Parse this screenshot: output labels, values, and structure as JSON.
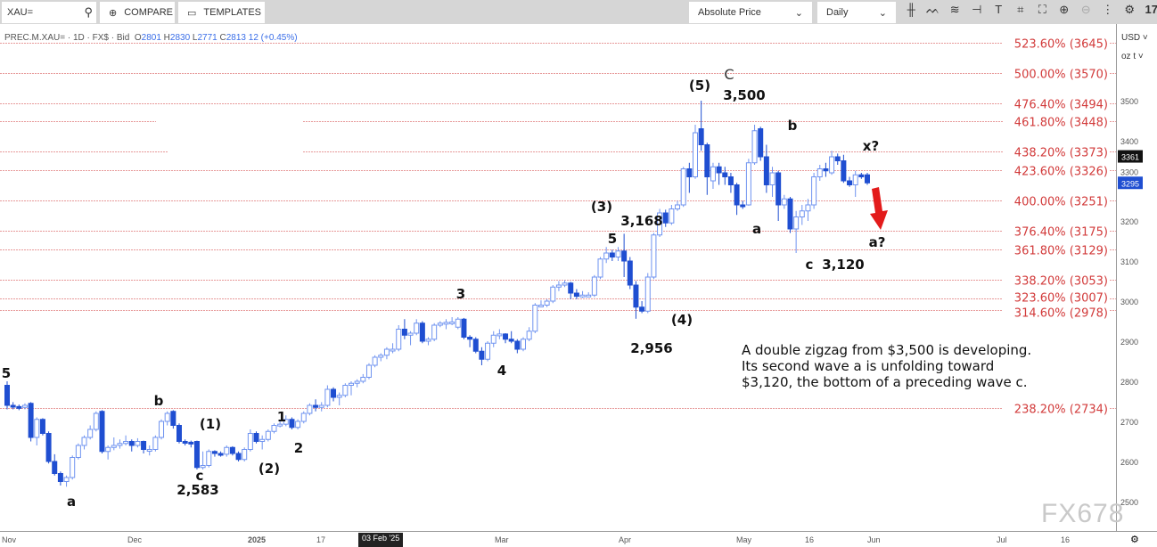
{
  "toolbar": {
    "search_value": "XAU=",
    "compare_label": "COMPARE",
    "templates_label": "TEMPLATES",
    "price_mode": "Absolute Price",
    "interval": "Daily",
    "icons": [
      "candlestick-icon",
      "indicators-icon",
      "studies-icon",
      "drawing-icon",
      "text-icon",
      "shape-icon",
      "pattern-icon",
      "zoom-in-icon",
      "zoom-out-icon",
      "more-icon",
      "settings-icon",
      "tradingview-logo-icon"
    ]
  },
  "legend": {
    "symbol": "PREC.M.XAU= · 1D · FX$ · Bid",
    "o": "2801",
    "h": "2830",
    "l": "2771",
    "c": "2813",
    "change": "12 (+0.45%)"
  },
  "axis_units": {
    "currency": "USD ˅",
    "unit": "oz t ˅"
  },
  "watermark": "FX678",
  "note": [
    "A double zigzag from $3,500 is developing.",
    "Its second wave a is unfolding toward",
    "$3,120, the bottom of a preceding wave c."
  ],
  "chart_data": {
    "type": "candlestick",
    "colors": {
      "up": "#6f93f0",
      "down": "#1f4ed1",
      "fib": "#d23a3a",
      "arrow": "#e31b1b"
    },
    "ylim": [
      2450,
      3680
    ],
    "yticks": [
      2500,
      2600,
      2700,
      2800,
      2900,
      3000,
      3100,
      3200,
      3300,
      3400,
      3500
    ],
    "xticks": [
      "Nov",
      "Dec",
      "2025",
      "17",
      "03 Feb '25",
      "Mar",
      "Apr",
      "May",
      "16",
      "Jun",
      "Jul",
      "16"
    ],
    "last_price_labels": [
      {
        "value": "3361",
        "color": "#111111"
      },
      {
        "value": "3295",
        "color": "#1f4ed1"
      }
    ],
    "fib_levels": [
      {
        "pct": "523.60%",
        "price": 3645
      },
      {
        "pct": "500.00%",
        "price": 3570
      },
      {
        "pct": "476.40%",
        "price": 3494
      },
      {
        "pct": "461.80%",
        "price": 3448
      },
      {
        "pct": "438.20%",
        "price": 3373
      },
      {
        "pct": "423.60%",
        "price": 3326
      },
      {
        "pct": "400.00%",
        "price": 3251
      },
      {
        "pct": "376.40%",
        "price": 3175
      },
      {
        "pct": "361.80%",
        "price": 3129
      },
      {
        "pct": "338.20%",
        "price": 3053
      },
      {
        "pct": "323.60%",
        "price": 3007
      },
      {
        "pct": "314.60%",
        "price": 2978
      },
      {
        "pct": "238.20%",
        "price": 2734
      }
    ],
    "wave_labels": [
      "5",
      "a",
      "b",
      "(1)",
      "c",
      "2,583",
      "(2)",
      "1",
      "2",
      "3",
      "4",
      "(3)",
      "3,168",
      "5",
      "(4)",
      "2,956",
      "(5)",
      "C",
      "3,500",
      "b",
      "a",
      "c",
      "3,120",
      "x?",
      "a?"
    ],
    "ohlc": [
      [
        2790,
        2800,
        2730,
        2740
      ],
      [
        2740,
        2748,
        2730,
        2737
      ],
      [
        2737,
        2742,
        2728,
        2735
      ],
      [
        2735,
        2745,
        2730,
        2740
      ],
      [
        2745,
        2748,
        2650,
        2660
      ],
      [
        2660,
        2710,
        2640,
        2705
      ],
      [
        2705,
        2708,
        2665,
        2670
      ],
      [
        2670,
        2675,
        2595,
        2600
      ],
      [
        2600,
        2618,
        2565,
        2570
      ],
      [
        2570,
        2575,
        2540,
        2550
      ],
      [
        2550,
        2565,
        2537,
        2560
      ],
      [
        2560,
        2615,
        2555,
        2610
      ],
      [
        2610,
        2645,
        2605,
        2640
      ],
      [
        2640,
        2665,
        2630,
        2660
      ],
      [
        2660,
        2690,
        2655,
        2680
      ],
      [
        2680,
        2725,
        2675,
        2720
      ],
      [
        2725,
        2728,
        2620,
        2625
      ],
      [
        2625,
        2640,
        2605,
        2635
      ],
      [
        2635,
        2660,
        2628,
        2640
      ],
      [
        2640,
        2655,
        2632,
        2645
      ],
      [
        2645,
        2665,
        2640,
        2650
      ],
      [
        2650,
        2655,
        2625,
        2640
      ],
      [
        2640,
        2658,
        2635,
        2650
      ],
      [
        2650,
        2652,
        2620,
        2630
      ],
      [
        2630,
        2640,
        2615,
        2630
      ],
      [
        2630,
        2665,
        2625,
        2660
      ],
      [
        2660,
        2705,
        2655,
        2700
      ],
      [
        2700,
        2725,
        2690,
        2720
      ],
      [
        2725,
        2728,
        2682,
        2690
      ],
      [
        2690,
        2695,
        2645,
        2650
      ],
      [
        2650,
        2655,
        2640,
        2648
      ],
      [
        2648,
        2652,
        2635,
        2645
      ],
      [
        2650,
        2652,
        2580,
        2585
      ],
      [
        2585,
        2625,
        2580,
        2590
      ],
      [
        2590,
        2630,
        2585,
        2625
      ],
      [
        2625,
        2628,
        2612,
        2620
      ],
      [
        2620,
        2625,
        2612,
        2618
      ],
      [
        2618,
        2640,
        2612,
        2635
      ],
      [
        2635,
        2638,
        2615,
        2620
      ],
      [
        2620,
        2625,
        2600,
        2605
      ],
      [
        2605,
        2635,
        2600,
        2630
      ],
      [
        2630,
        2680,
        2625,
        2670
      ],
      [
        2670,
        2675,
        2645,
        2650
      ],
      [
        2650,
        2665,
        2630,
        2655
      ],
      [
        2655,
        2680,
        2650,
        2675
      ],
      [
        2675,
        2695,
        2670,
        2690
      ],
      [
        2690,
        2700,
        2685,
        2693
      ],
      [
        2693,
        2715,
        2688,
        2705
      ],
      [
        2705,
        2710,
        2680,
        2685
      ],
      [
        2685,
        2705,
        2680,
        2700
      ],
      [
        2700,
        2725,
        2695,
        2720
      ],
      [
        2720,
        2745,
        2715,
        2740
      ],
      [
        2740,
        2755,
        2725,
        2735
      ],
      [
        2735,
        2748,
        2725,
        2740
      ],
      [
        2740,
        2790,
        2735,
        2780
      ],
      [
        2780,
        2785,
        2750,
        2760
      ],
      [
        2760,
        2772,
        2740,
        2765
      ],
      [
        2765,
        2795,
        2760,
        2790
      ],
      [
        2790,
        2800,
        2765,
        2795
      ],
      [
        2795,
        2805,
        2785,
        2800
      ],
      [
        2800,
        2818,
        2795,
        2810
      ],
      [
        2810,
        2845,
        2805,
        2840
      ],
      [
        2840,
        2865,
        2835,
        2860
      ],
      [
        2860,
        2870,
        2850,
        2865
      ],
      [
        2865,
        2885,
        2855,
        2880
      ],
      [
        2880,
        2895,
        2870,
        2880
      ],
      [
        2880,
        2940,
        2875,
        2930
      ],
      [
        2930,
        2955,
        2905,
        2915
      ],
      [
        2915,
        2925,
        2890,
        2920
      ],
      [
        2920,
        2955,
        2915,
        2945
      ],
      [
        2945,
        2950,
        2895,
        2900
      ],
      [
        2900,
        2910,
        2890,
        2905
      ],
      [
        2905,
        2945,
        2900,
        2940
      ],
      [
        2940,
        2950,
        2935,
        2945
      ],
      [
        2945,
        2955,
        2930,
        2947
      ],
      [
        2947,
        2960,
        2940,
        2948
      ],
      [
        2935,
        2960,
        2930,
        2955
      ],
      [
        2955,
        2958,
        2905,
        2910
      ],
      [
        2910,
        2915,
        2885,
        2905
      ],
      [
        2905,
        2910,
        2870,
        2875
      ],
      [
        2875,
        2885,
        2840,
        2855
      ],
      [
        2855,
        2900,
        2850,
        2895
      ],
      [
        2895,
        2925,
        2885,
        2915
      ],
      [
        2915,
        2930,
        2905,
        2918
      ],
      [
        2918,
        2920,
        2895,
        2905
      ],
      [
        2905,
        2925,
        2895,
        2900
      ],
      [
        2900,
        2905,
        2870,
        2880
      ],
      [
        2880,
        2910,
        2875,
        2905
      ],
      [
        2905,
        2935,
        2900,
        2925
      ],
      [
        2925,
        2995,
        2920,
        2990
      ],
      [
        2990,
        3002,
        2985,
        2990
      ],
      [
        2990,
        3005,
        2985,
        3000
      ],
      [
        3000,
        3040,
        2995,
        3035
      ],
      [
        3035,
        3050,
        3025,
        3040
      ],
      [
        3040,
        3052,
        3035,
        3045
      ],
      [
        3045,
        3048,
        3005,
        3020
      ],
      [
        3020,
        3030,
        3005,
        3012
      ],
      [
        3012,
        3025,
        3008,
        3015
      ],
      [
        3015,
        3022,
        3010,
        3015
      ],
      [
        3015,
        3065,
        3010,
        3060
      ],
      [
        3060,
        3110,
        3055,
        3105
      ],
      [
        3105,
        3135,
        3095,
        3120
      ],
      [
        3120,
        3128,
        3100,
        3110
      ],
      [
        3110,
        3135,
        3100,
        3125
      ],
      [
        3125,
        3168,
        3060,
        3100
      ],
      [
        3100,
        3110,
        3030,
        3040
      ],
      [
        3040,
        3050,
        2956,
        2985
      ],
      [
        2985,
        3000,
        2970,
        2975
      ],
      [
        2975,
        3070,
        2970,
        3060
      ],
      [
        3060,
        3170,
        3055,
        3165
      ],
      [
        3165,
        3230,
        3160,
        3220
      ],
      [
        3220,
        3228,
        3185,
        3195
      ],
      [
        3195,
        3240,
        3190,
        3230
      ],
      [
        3230,
        3250,
        3225,
        3240
      ],
      [
        3240,
        3335,
        3235,
        3330
      ],
      [
        3330,
        3345,
        3270,
        3310
      ],
      [
        3310,
        3440,
        3305,
        3420
      ],
      [
        3430,
        3500,
        3375,
        3390
      ],
      [
        3390,
        3395,
        3265,
        3310
      ],
      [
        3300,
        3345,
        3280,
        3335
      ],
      [
        3335,
        3345,
        3290,
        3320
      ],
      [
        3320,
        3335,
        3290,
        3310
      ],
      [
        3310,
        3320,
        3270,
        3290
      ],
      [
        3290,
        3295,
        3215,
        3240
      ],
      [
        3240,
        3250,
        3230,
        3238
      ],
      [
        3240,
        3355,
        3238,
        3345
      ],
      [
        3345,
        3440,
        3340,
        3425
      ],
      [
        3430,
        3435,
        3350,
        3360
      ],
      [
        3360,
        3390,
        3270,
        3290
      ],
      [
        3290,
        3335,
        3260,
        3320
      ],
      [
        3320,
        3325,
        3200,
        3240
      ],
      [
        3240,
        3265,
        3230,
        3255
      ],
      [
        3255,
        3260,
        3170,
        3180
      ],
      [
        3180,
        3225,
        3120,
        3210
      ],
      [
        3210,
        3240,
        3190,
        3225
      ],
      [
        3225,
        3255,
        3200,
        3240
      ],
      [
        3240,
        3320,
        3230,
        3310
      ],
      [
        3310,
        3340,
        3300,
        3330
      ],
      [
        3330,
        3345,
        3310,
        3325
      ],
      [
        3320,
        3375,
        3315,
        3360
      ],
      [
        3360,
        3368,
        3340,
        3350
      ],
      [
        3350,
        3365,
        3295,
        3300
      ],
      [
        3300,
        3310,
        3285,
        3290
      ],
      [
        3290,
        3325,
        3260,
        3315
      ],
      [
        3315,
        3320,
        3305,
        3310
      ],
      [
        3315,
        3320,
        3290,
        3295
      ]
    ]
  }
}
